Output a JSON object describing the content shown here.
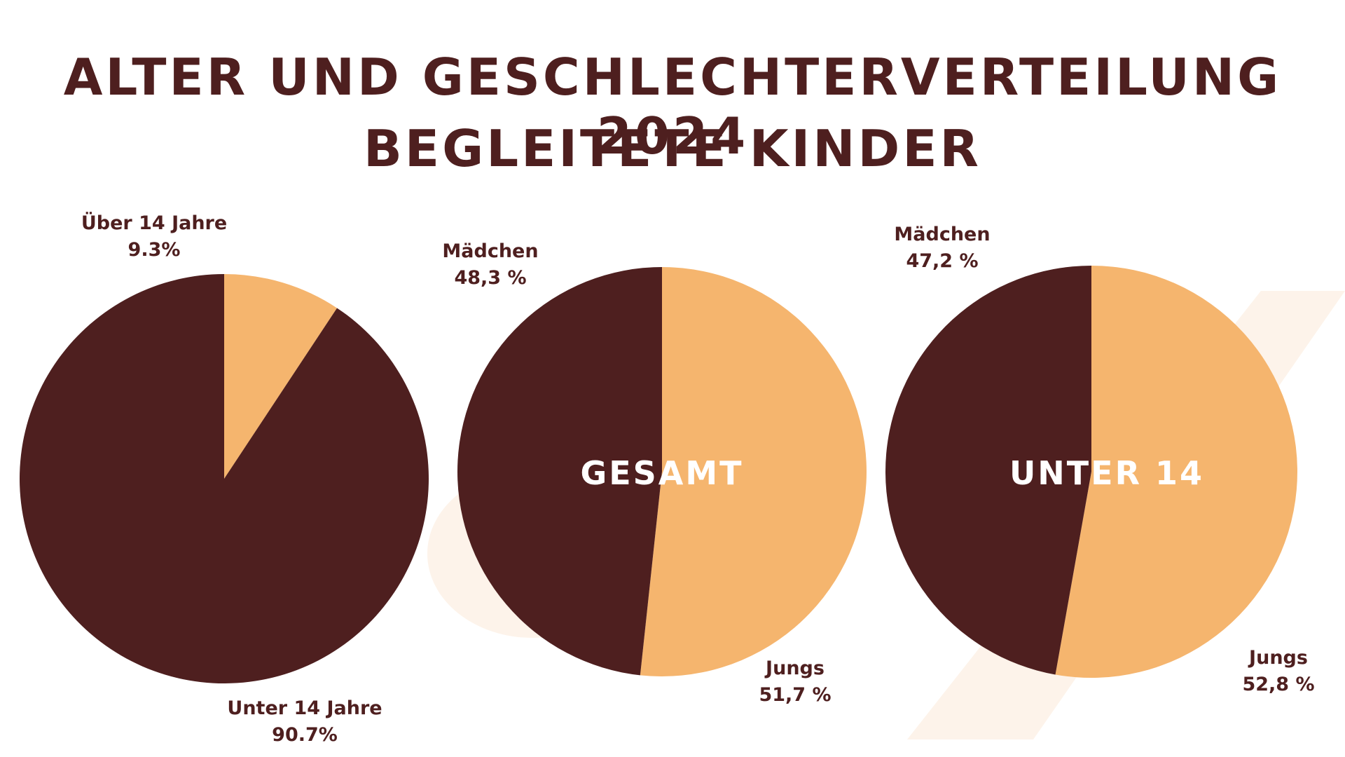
{
  "title": {
    "line1": "ALTER UND GESCHLECHTERVERTEILUNG 2024",
    "line2": "BEGLEITETE KINDER"
  },
  "colors": {
    "dark": "#4e1f1f",
    "light": "#f5b56e",
    "watermark": "#fdf3ea",
    "text": "#4e1f1f",
    "center_text": "#ffffff"
  },
  "chart_data": [
    {
      "type": "pie",
      "center_label": "",
      "slices": [
        {
          "label": "Über 14 Jahre",
          "value_text": "9.3%",
          "value": 9.3,
          "color": "#f5b56e"
        },
        {
          "label": "Unter 14 Jahre",
          "value_text": "90.7%",
          "value": 90.7,
          "color": "#4e1f1f"
        }
      ]
    },
    {
      "type": "pie",
      "center_label": "GESAMT",
      "slices": [
        {
          "label": "Jungs",
          "value_text": "51,7 %",
          "value": 51.7,
          "color": "#f5b56e"
        },
        {
          "label": "Mädchen",
          "value_text": "48,3 %",
          "value": 48.3,
          "color": "#4e1f1f"
        }
      ]
    },
    {
      "type": "pie",
      "center_label": "UNTER 14",
      "slices": [
        {
          "label": "Jungs",
          "value_text": "52,8 %",
          "value": 52.8,
          "color": "#f5b56e"
        },
        {
          "label": "Mädchen",
          "value_text": "47,2 %",
          "value": 47.2,
          "color": "#4e1f1f"
        }
      ]
    }
  ]
}
